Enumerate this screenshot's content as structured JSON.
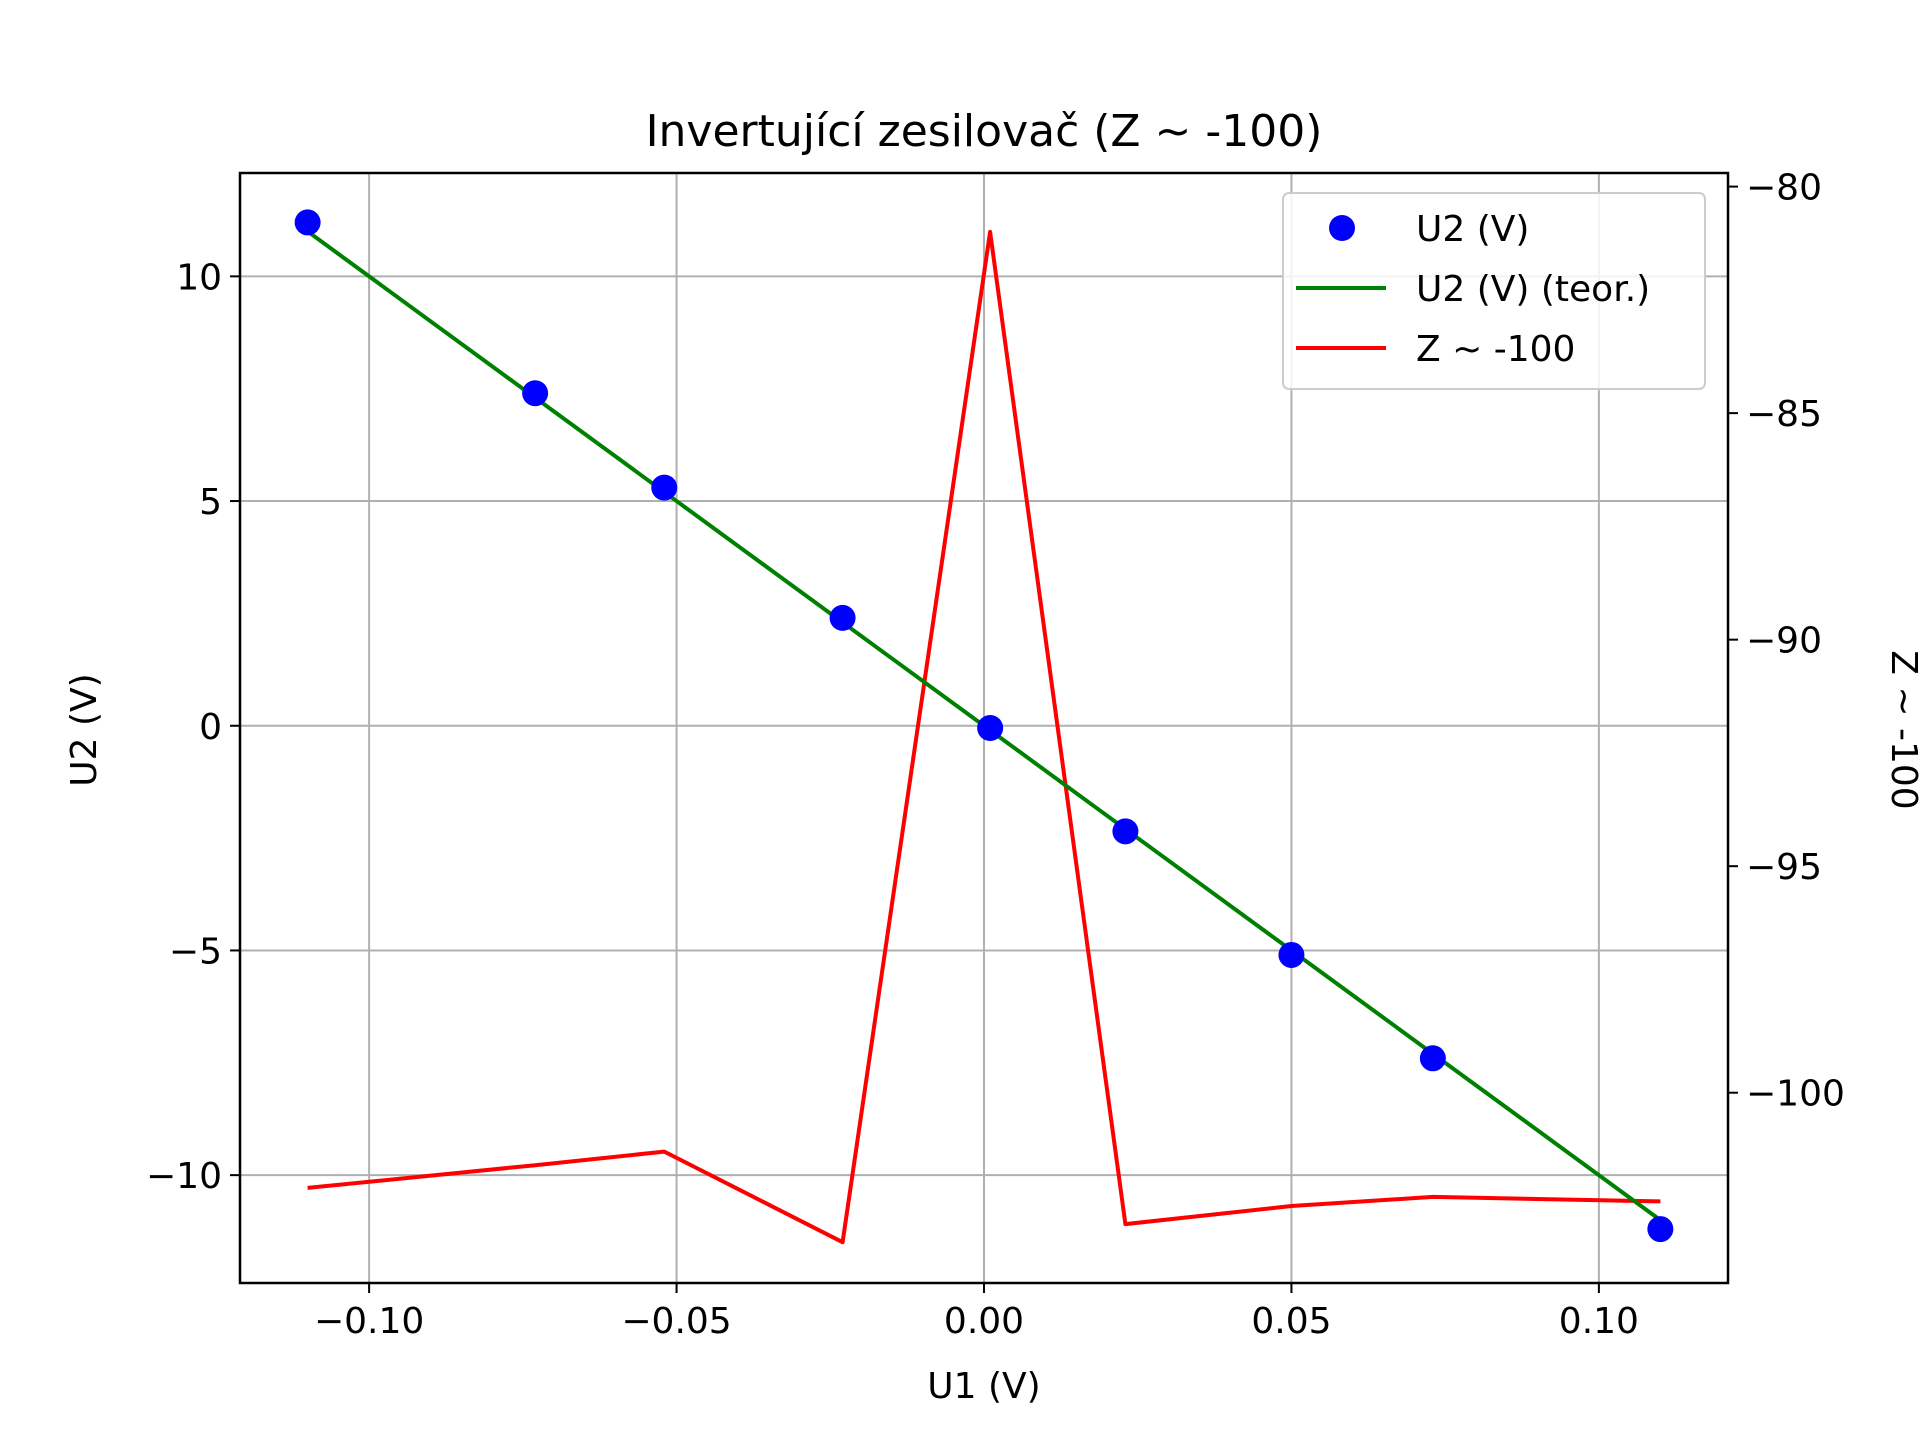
{
  "chart_data": {
    "type": "line",
    "title": "Invertující zesilovač (Z ~ -100)",
    "xlabel": "U1 (V)",
    "ylabel": "U2 (V)",
    "y2label": "Z ~ -100",
    "xlim": [
      -0.121,
      0.121
    ],
    "ylim": [
      -12.4,
      12.3
    ],
    "y2lim": [
      -104.2,
      -79.7
    ],
    "xticks": [
      -0.1,
      -0.05,
      0.0,
      0.05,
      0.1
    ],
    "xtick_labels": [
      "−0.10",
      "−0.05",
      "0.00",
      "0.05",
      "0.10"
    ],
    "yticks": [
      -10,
      -5,
      0,
      5,
      10
    ],
    "ytick_labels": [
      "−10",
      "−5",
      "0",
      "5",
      "10"
    ],
    "y2ticks": [
      -100,
      -95,
      -90,
      -85,
      -80
    ],
    "y2tick_labels": [
      "−100",
      "−95",
      "−90",
      "−85",
      "−80"
    ],
    "grid": true,
    "legend_position": "top-right",
    "series": [
      {
        "name": "U2 (V)",
        "kind": "scatter",
        "axis": "left",
        "color": "#0000ff",
        "x": [
          -0.11,
          -0.073,
          -0.052,
          -0.023,
          0.001,
          0.023,
          0.05,
          0.073,
          0.11
        ],
        "y": [
          11.2,
          7.4,
          5.3,
          2.4,
          -0.05,
          -2.35,
          -5.1,
          -7.4,
          -11.2
        ]
      },
      {
        "name": "U2 (V) (teor.)",
        "kind": "line",
        "axis": "left",
        "color": "#008000",
        "x": [
          -0.11,
          0.11
        ],
        "y": [
          11.0,
          -11.0
        ]
      },
      {
        "name": "Z ~ -100",
        "kind": "line",
        "axis": "right",
        "color": "#ff0000",
        "x": [
          -0.11,
          -0.073,
          -0.052,
          -0.023,
          0.001,
          0.023,
          0.05,
          0.073,
          0.11
        ],
        "y": [
          -102.1,
          -101.6,
          -101.3,
          -103.3,
          -81.0,
          -102.9,
          -102.5,
          -102.3,
          -102.4
        ]
      }
    ]
  }
}
